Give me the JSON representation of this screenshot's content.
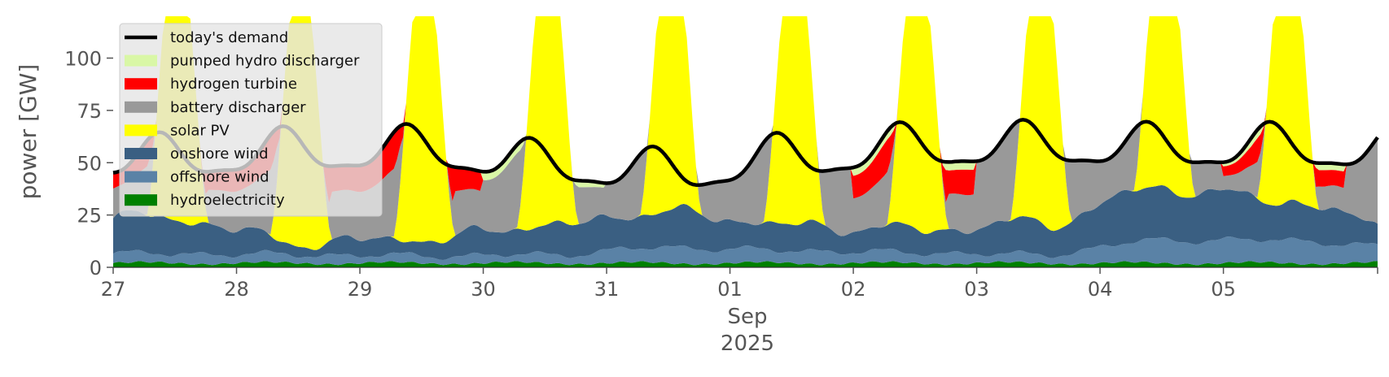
{
  "chart_data": {
    "type": "area",
    "stacked": true,
    "ylabel": "power [GW]",
    "xlabel": "",
    "x_tick_labels": [
      "27",
      "28",
      "29",
      "30",
      "31",
      "01",
      "02",
      "03",
      "04",
      "05"
    ],
    "x_sublabel_month": "Sep",
    "x_sublabel_year": "2025",
    "x_start_date": "2025-08-27",
    "x_end_date": "2025-09-06",
    "ylim": [
      0,
      120
    ],
    "y_ticks": [
      0,
      25,
      50,
      75,
      100
    ],
    "grid": false,
    "legend_position": "upper left",
    "series": [
      {
        "name": "hydroelectricity",
        "color": "#008000",
        "base": 2.0,
        "amp": 0.6,
        "noise": 0.4
      },
      {
        "name": "offshore wind",
        "color": "#5a82a6",
        "days": [
          4.5,
          4.0,
          3.5,
          4.0,
          7.5,
          6.0,
          5.0,
          4.0,
          11.0,
          11.0,
          7.0
        ]
      },
      {
        "name": "onshore wind",
        "color": "#3a5f82",
        "days": [
          17.0,
          6.0,
          8.0,
          14.0,
          17.0,
          12.0,
          11.0,
          15.0,
          25.0,
          19.0,
          8.0
        ]
      },
      {
        "name": "solar PV",
        "color": "#ffff00",
        "peak": 140
      },
      {
        "name": "battery discharger",
        "color": "#999999"
      },
      {
        "name": "hydrogen turbine",
        "color": "#ff0000"
      },
      {
        "name": "pumped hydro discharger",
        "color": "#d9f7a6"
      }
    ],
    "demand": {
      "name": "today's demand",
      "color": "#000000",
      "day_mean": [
        52,
        55,
        56,
        49,
        45,
        52,
        57,
        58,
        57,
        57,
        55
      ],
      "amp": 12
    },
    "legend_order": [
      "today's demand",
      "pumped hydro discharger",
      "hydrogen turbine",
      "battery discharger",
      "solar PV",
      "onshore wind",
      "offshore wind",
      "hydroelectricity"
    ]
  }
}
